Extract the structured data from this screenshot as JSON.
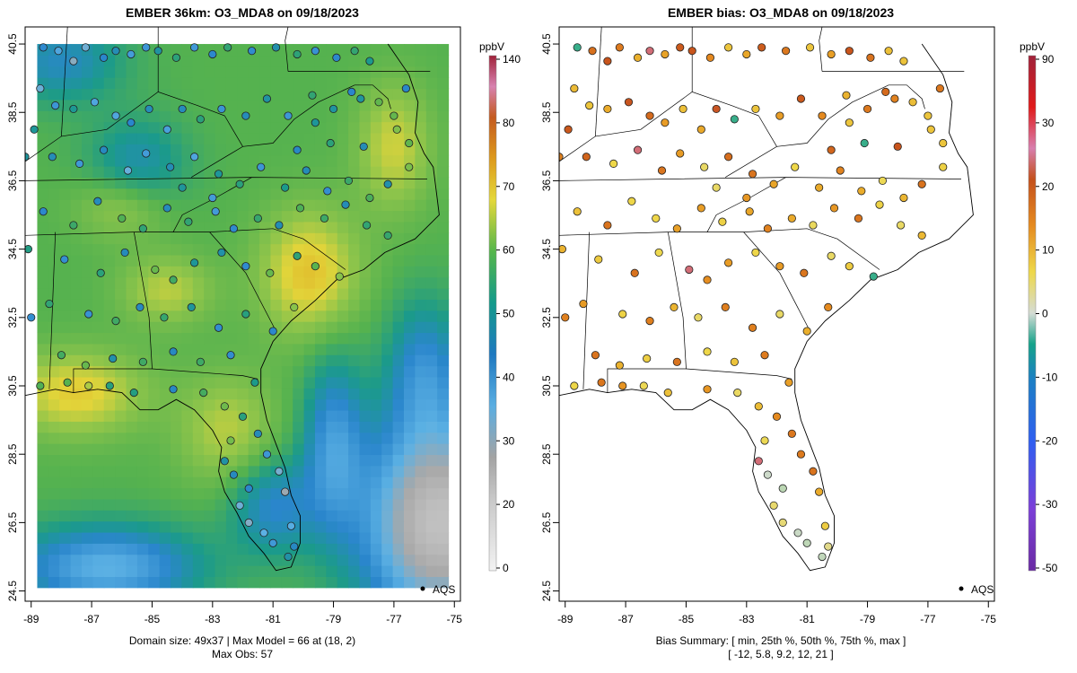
{
  "left_panel": {
    "title": "EMBER 36km: O3_MDA8 on 09/18/2023",
    "caption_line1": "Domain size: 49x37 | Max Model = 66 at (18, 2)",
    "caption_line2": "Max Obs: 57",
    "legend_unit": "ppbV",
    "legend_ticks": [
      "140",
      "80",
      "70",
      "60",
      "50",
      "40",
      "30",
      "20",
      "0"
    ],
    "point_legend": "AQS"
  },
  "right_panel": {
    "title": "EMBER bias: O3_MDA8 on 09/18/2023",
    "caption_line1": "Bias Summary: [ min, 25th %, 50th %, 75th %, max ]",
    "caption_line2": "[ -12,   5.8,   9.2,   12,   21 ]",
    "legend_unit": "ppbV",
    "legend_ticks": [
      "90",
      "30",
      "20",
      "10",
      "0",
      "-10",
      "-20",
      "-30",
      "-50"
    ],
    "point_legend": "AQS"
  },
  "axes": {
    "x_ticks": [
      "-89",
      "-87",
      "-85",
      "-83",
      "-81",
      "-79",
      "-77",
      "-75"
    ],
    "y_ticks": [
      "40.5",
      "38.5",
      "36.5",
      "34.5",
      "32.5",
      "30.5",
      "28.5",
      "26.5",
      "24.5"
    ]
  },
  "colors": {
    "model_low": "#d9d9d9",
    "model_blue": "#2f8fd0",
    "model_green": "#4cb26a",
    "model_yellow": "#e8d53a",
    "model_orange": "#e39b1f",
    "bias_orange": "#e58a1f",
    "bias_yellow": "#eed84a"
  },
  "chart_data": [
    {
      "type": "heatmap",
      "title": "EMBER 36km: O3_MDA8 on 09/18/2023",
      "unit": "ppbV",
      "xlim": [
        -89.2,
        -74.8
      ],
      "ylim": [
        24.2,
        41.0
      ],
      "domain_size": "49x37",
      "max_model": 66,
      "max_obs": 57,
      "color_scale_ticks": [
        0,
        20,
        30,
        40,
        50,
        60,
        70,
        80,
        140
      ],
      "approx_regions": [
        {
          "region": "Atlantic SE of Florida",
          "value": 22
        },
        {
          "region": "Gulf coast / N Florida",
          "value": 60
        },
        {
          "region": "Carolinas coast",
          "value": 62
        },
        {
          "region": "Appalachians / Ohio valley",
          "value": 47
        },
        {
          "region": "South Florida",
          "value": 38
        }
      ],
      "series": [
        {
          "name": "AQS",
          "type": "scatter"
        }
      ]
    },
    {
      "type": "scatter",
      "title": "EMBER bias: O3_MDA8 on 09/18/2023",
      "unit": "ppbV",
      "xlim": [
        -89.2,
        -74.8
      ],
      "ylim": [
        24.2,
        41.0
      ],
      "color_scale_ticks": [
        -50,
        -30,
        -20,
        -10,
        0,
        10,
        20,
        30,
        90
      ],
      "bias_summary": {
        "min": -12,
        "p25": 5.8,
        "median": 9.2,
        "p75": 12,
        "max": 21
      },
      "series": [
        {
          "name": "AQS"
        }
      ]
    }
  ]
}
